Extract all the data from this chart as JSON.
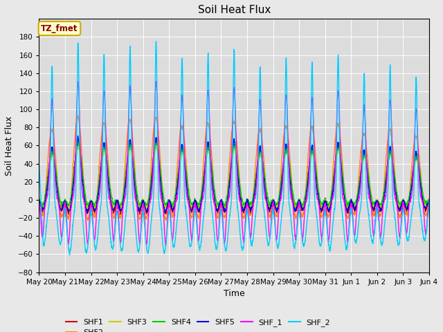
{
  "title": "Soil Heat Flux",
  "xlabel": "Time",
  "ylabel": "Soil Heat Flux",
  "ylim": [
    -80,
    200
  ],
  "yticks": [
    -80,
    -60,
    -40,
    -20,
    0,
    20,
    40,
    60,
    80,
    100,
    120,
    140,
    160,
    180
  ],
  "background_color": "#e8e8e8",
  "plot_bg_color": "#dcdcdc",
  "series_colors": {
    "SHF1": "#cc0000",
    "SHF2": "#ff8800",
    "SHF3": "#cccc00",
    "SHF4": "#00cc00",
    "SHF5": "#0000dd",
    "SHF_1": "#ff00ff",
    "SHF_2": "#00ccff"
  },
  "annotation_text": "TZ_fmet",
  "annotation_color": "#8b0000",
  "annotation_bg": "#ffffcc",
  "annotation_border": "#ccaa00",
  "n_days": 15,
  "tick_labels": [
    "May 20",
    "May 21",
    "May 22",
    "May 23",
    "May 24",
    "May 25",
    "May 26",
    "May 27",
    "May 28",
    "May 29",
    "May 30",
    "May 31",
    "Jun 1",
    "Jun 2",
    "Jun 3",
    "Jun 4"
  ],
  "line_width": 1.0
}
